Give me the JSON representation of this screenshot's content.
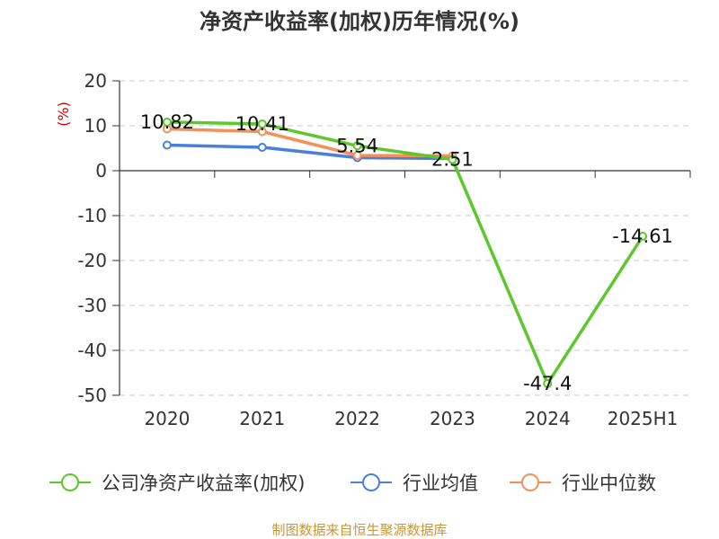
{
  "chart_data": {
    "type": "line",
    "title": "净资产收益率(加权)历年情况(%)",
    "ylabel": "(%)",
    "categories": [
      "2020",
      "2021",
      "2022",
      "2023",
      "2024",
      "2025H1"
    ],
    "ylim": [
      -50,
      20
    ],
    "yticks": [
      20,
      10,
      0,
      -10,
      -20,
      -30,
      -40,
      -50
    ],
    "grid": true,
    "legend_position": "bottom",
    "series": [
      {
        "name": "公司净资产收益率(加权)",
        "color": "#5dc72b",
        "values": [
          10.82,
          10.41,
          5.54,
          2.51,
          -47.4,
          -14.61
        ],
        "labels": [
          "10.82",
          "10.41",
          "5.54",
          "2.51",
          "-47.4",
          "-14.61"
        ]
      },
      {
        "name": "行业均值",
        "color": "#4a7fdc",
        "values": [
          5.7,
          5.2,
          2.9,
          2.7,
          null,
          null
        ]
      },
      {
        "name": "行业中位数",
        "color": "#f59058",
        "values": [
          9.3,
          8.7,
          3.4,
          3.3,
          null,
          null
        ]
      }
    ],
    "source": "制图数据来自恒生聚源数据库"
  }
}
